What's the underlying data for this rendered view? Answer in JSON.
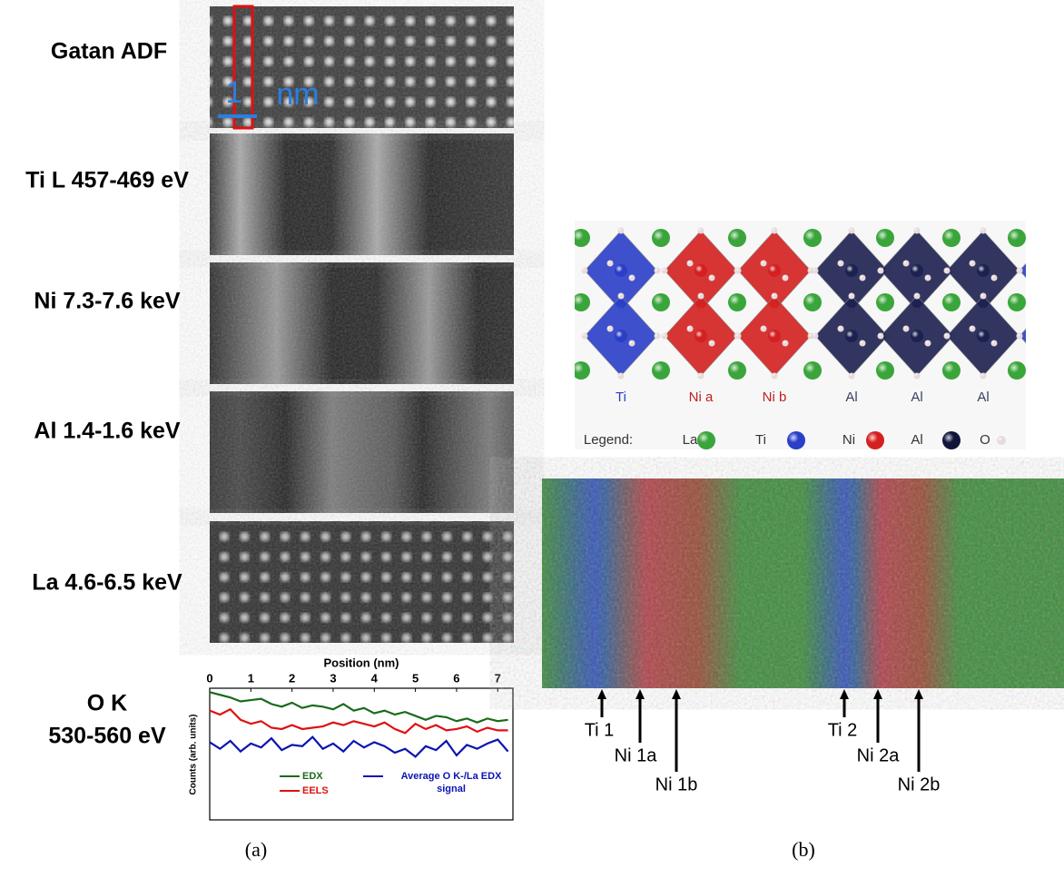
{
  "panel_a": {
    "rows": [
      "Gatan ADF",
      "Ti L 457-469 eV",
      "Ni 7.3-7.6 keV",
      "Al 1.4-1.6 keV",
      "La 4.6-6.5 keV"
    ],
    "last_row": [
      "O K",
      "530-560 eV"
    ],
    "scale_bar": [
      "1",
      "nm"
    ],
    "caption": "(a)"
  },
  "chart_data": {
    "type": "line",
    "x_label": "Position (nm)",
    "y_label": "Counts (arb. units)",
    "x": [
      0,
      0.25,
      0.5,
      0.75,
      1,
      1.25,
      1.5,
      1.75,
      2,
      2.25,
      2.5,
      2.75,
      3,
      3.25,
      3.5,
      3.75,
      4,
      4.25,
      4.5,
      4.75,
      5,
      5.25,
      5.5,
      5.75,
      6,
      6.25,
      6.5,
      6.75,
      7,
      7.25
    ],
    "xlim": [
      0,
      7.37
    ],
    "xticks": [
      0,
      1,
      2,
      3,
      4,
      5,
      6,
      7
    ],
    "ylim": [
      0,
      10
    ],
    "series": [
      {
        "name": "EDX",
        "color": "#1a6b1a",
        "values": [
          9.7,
          9.5,
          9.3,
          9.0,
          9.1,
          9.2,
          8.8,
          8.6,
          8.9,
          8.5,
          8.7,
          8.6,
          8.4,
          8.8,
          8.3,
          8.5,
          8.1,
          8.3,
          8.0,
          8.2,
          7.9,
          7.6,
          7.9,
          7.8,
          7.5,
          7.7,
          7.4,
          7.7,
          7.5,
          7.6
        ]
      },
      {
        "name": "EELS",
        "color": "#e01010",
        "values": [
          8.3,
          8.0,
          8.4,
          7.6,
          7.3,
          7.5,
          7.0,
          6.9,
          7.2,
          6.9,
          7.0,
          7.1,
          7.4,
          7.2,
          7.5,
          7.3,
          7.1,
          7.4,
          6.9,
          6.6,
          7.3,
          6.9,
          7.2,
          6.8,
          6.9,
          7.1,
          6.7,
          7.0,
          6.8,
          6.8
        ]
      },
      {
        "name": "Average O K-/La EDX signal",
        "color": "#0a14b0",
        "values": [
          5.9,
          5.4,
          6.0,
          5.2,
          5.8,
          5.5,
          6.2,
          5.3,
          5.7,
          5.6,
          6.3,
          5.4,
          5.8,
          5.2,
          6.0,
          5.5,
          5.9,
          5.6,
          5.1,
          5.4,
          4.8,
          5.6,
          5.3,
          6.0,
          4.9,
          5.7,
          5.4,
          5.8,
          6.1,
          5.2
        ]
      }
    ]
  },
  "panel_b": {
    "columns": [
      "Ti",
      "Ni a",
      "Ni b",
      "Al",
      "Al",
      "Al"
    ],
    "legend_title": "Legend:",
    "legend": [
      "La",
      "Ti",
      "Ni",
      "Al",
      "O"
    ],
    "arrows": [
      "Ti 1",
      "Ni 1a",
      "Ni 1b",
      "Ti 2",
      "Ni 2a",
      "Ni 2b"
    ],
    "caption": "(b)"
  }
}
